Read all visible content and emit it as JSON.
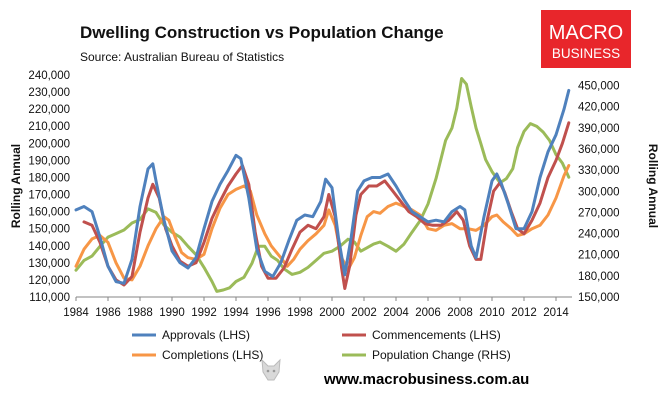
{
  "chart_data": {
    "type": "line",
    "title": "Dwelling Construction vs Population Change",
    "subtitle": "Source: Australian Bureau of Statistics",
    "ylabel": "Rolling Annual",
    "y2label": "Rolling Annual",
    "ylim": [
      110000,
      240000
    ],
    "y2lim": [
      150000,
      465000
    ],
    "xlim": [
      1984,
      2015
    ],
    "x_ticks": [
      1984,
      1986,
      1988,
      1990,
      1992,
      1994,
      1996,
      1998,
      2000,
      2002,
      2004,
      2006,
      2008,
      2010,
      2012,
      2014
    ],
    "y_ticks": [
      110000,
      120000,
      130000,
      140000,
      150000,
      160000,
      170000,
      180000,
      190000,
      200000,
      210000,
      220000,
      230000,
      240000
    ],
    "y2_ticks": [
      150000,
      180000,
      210000,
      240000,
      270000,
      300000,
      330000,
      360000,
      390000,
      420000,
      450000
    ],
    "y_tick_labels": [
      "110,000",
      "120,000",
      "130,000",
      "140,000",
      "150,000",
      "160,000",
      "170,000",
      "180,000",
      "190,000",
      "200,000",
      "210,000",
      "220,000",
      "230,000",
      "240,000"
    ],
    "y2_tick_labels": [
      "150,000",
      "180,000",
      "210,000",
      "240,000",
      "270,000",
      "300,000",
      "330,000",
      "360,000",
      "390,000",
      "420,000",
      "450,000"
    ],
    "grid": false,
    "legend_position": "bottom",
    "series": [
      {
        "name": "Approvals (LHS)",
        "axis": "left",
        "color": "#4f81bd",
        "points": [
          [
            1984,
            161000
          ],
          [
            1984.5,
            163000
          ],
          [
            1985,
            160000
          ],
          [
            1985.5,
            145000
          ],
          [
            1986,
            128000
          ],
          [
            1986.5,
            119000
          ],
          [
            1987,
            118000
          ],
          [
            1987.5,
            132000
          ],
          [
            1988,
            163000
          ],
          [
            1988.5,
            185000
          ],
          [
            1988.8,
            188000
          ],
          [
            1989,
            178000
          ],
          [
            1989.5,
            155000
          ],
          [
            1990,
            137000
          ],
          [
            1990.5,
            130000
          ],
          [
            1991,
            127000
          ],
          [
            1991.5,
            133000
          ],
          [
            1992,
            150000
          ],
          [
            1992.5,
            166000
          ],
          [
            1993,
            176000
          ],
          [
            1993.5,
            184000
          ],
          [
            1994,
            193000
          ],
          [
            1994.3,
            191000
          ],
          [
            1994.8,
            168000
          ],
          [
            1995.3,
            138000
          ],
          [
            1995.8,
            125000
          ],
          [
            1996.3,
            122000
          ],
          [
            1996.8,
            130000
          ],
          [
            1997.3,
            143000
          ],
          [
            1997.8,
            155000
          ],
          [
            1998.3,
            158000
          ],
          [
            1998.8,
            157000
          ],
          [
            1999.3,
            166000
          ],
          [
            1999.6,
            179000
          ],
          [
            2000,
            174000
          ],
          [
            2000.4,
            145000
          ],
          [
            2000.8,
            123000
          ],
          [
            2001.2,
            145000
          ],
          [
            2001.6,
            172000
          ],
          [
            2002,
            178000
          ],
          [
            2002.5,
            180000
          ],
          [
            2003,
            180000
          ],
          [
            2003.5,
            182000
          ],
          [
            2004,
            175000
          ],
          [
            2004.5,
            167000
          ],
          [
            2005,
            160000
          ],
          [
            2005.5,
            157000
          ],
          [
            2006,
            154000
          ],
          [
            2006.5,
            155000
          ],
          [
            2007,
            154000
          ],
          [
            2007.5,
            160000
          ],
          [
            2008,
            163000
          ],
          [
            2008.3,
            161000
          ],
          [
            2008.7,
            140000
          ],
          [
            2009,
            133000
          ],
          [
            2009.5,
            157000
          ],
          [
            2010,
            178000
          ],
          [
            2010.3,
            182000
          ],
          [
            2010.6,
            176000
          ],
          [
            2011,
            165000
          ],
          [
            2011.5,
            150000
          ],
          [
            2012,
            150000
          ],
          [
            2012.5,
            160000
          ],
          [
            2013,
            180000
          ],
          [
            2013.5,
            195000
          ],
          [
            2014,
            205000
          ],
          [
            2014.5,
            220000
          ],
          [
            2014.8,
            231000
          ]
        ]
      },
      {
        "name": "Commencements (LHS)",
        "axis": "left",
        "color": "#c0504d",
        "points": [
          [
            1984.5,
            154000
          ],
          [
            1985,
            152000
          ],
          [
            1985.5,
            142000
          ],
          [
            1986,
            128000
          ],
          [
            1986.5,
            120000
          ],
          [
            1987,
            117000
          ],
          [
            1987.5,
            122000
          ],
          [
            1988,
            148000
          ],
          [
            1988.5,
            168000
          ],
          [
            1988.8,
            176000
          ],
          [
            1989.2,
            168000
          ],
          [
            1989.6,
            150000
          ],
          [
            1990,
            140000
          ],
          [
            1990.5,
            131000
          ],
          [
            1991,
            128000
          ],
          [
            1991.5,
            130000
          ],
          [
            1992,
            142000
          ],
          [
            1992.5,
            156000
          ],
          [
            1993,
            166000
          ],
          [
            1993.5,
            175000
          ],
          [
            1994,
            182000
          ],
          [
            1994.4,
            187000
          ],
          [
            1994.8,
            176000
          ],
          [
            1995.2,
            148000
          ],
          [
            1995.6,
            128000
          ],
          [
            1996,
            121000
          ],
          [
            1996.5,
            121000
          ],
          [
            1997,
            127000
          ],
          [
            1997.5,
            138000
          ],
          [
            1998,
            148000
          ],
          [
            1998.5,
            152000
          ],
          [
            1999,
            150000
          ],
          [
            1999.5,
            157000
          ],
          [
            1999.8,
            170000
          ],
          [
            2000.2,
            157000
          ],
          [
            2000.6,
            127000
          ],
          [
            2000.8,
            115000
          ],
          [
            2001.1,
            128000
          ],
          [
            2001.5,
            158000
          ],
          [
            2001.8,
            170000
          ],
          [
            2002.3,
            175000
          ],
          [
            2002.8,
            175000
          ],
          [
            2003.3,
            178000
          ],
          [
            2003.8,
            172000
          ],
          [
            2004.3,
            166000
          ],
          [
            2004.8,
            160000
          ],
          [
            2005.3,
            157000
          ],
          [
            2005.8,
            153000
          ],
          [
            2006.3,
            152000
          ],
          [
            2006.8,
            152000
          ],
          [
            2007.3,
            155000
          ],
          [
            2007.8,
            160000
          ],
          [
            2008.2,
            155000
          ],
          [
            2008.6,
            140000
          ],
          [
            2009,
            132000
          ],
          [
            2009.3,
            132000
          ],
          [
            2009.7,
            155000
          ],
          [
            2010.1,
            172000
          ],
          [
            2010.5,
            177000
          ],
          [
            2010.8,
            171000
          ],
          [
            2011.2,
            160000
          ],
          [
            2011.6,
            150000
          ],
          [
            2012,
            147000
          ],
          [
            2012.5,
            155000
          ],
          [
            2013,
            165000
          ],
          [
            2013.5,
            180000
          ],
          [
            2014,
            190000
          ],
          [
            2014.4,
            200000
          ],
          [
            2014.8,
            212000
          ]
        ]
      },
      {
        "name": "Completions (LHS)",
        "axis": "left",
        "color": "#f79646",
        "points": [
          [
            1984,
            128000
          ],
          [
            1984.5,
            138000
          ],
          [
            1985,
            144000
          ],
          [
            1985.5,
            146000
          ],
          [
            1986,
            142000
          ],
          [
            1986.5,
            130000
          ],
          [
            1987,
            121000
          ],
          [
            1987.5,
            120000
          ],
          [
            1988,
            128000
          ],
          [
            1988.5,
            140000
          ],
          [
            1989,
            150000
          ],
          [
            1989.5,
            157000
          ],
          [
            1989.8,
            155000
          ],
          [
            1990.2,
            145000
          ],
          [
            1990.6,
            136000
          ],
          [
            1991,
            133000
          ],
          [
            1991.5,
            132000
          ],
          [
            1992,
            135000
          ],
          [
            1992.5,
            150000
          ],
          [
            1993,
            162000
          ],
          [
            1993.5,
            170000
          ],
          [
            1994,
            173000
          ],
          [
            1994.5,
            175000
          ],
          [
            1994.9,
            172000
          ],
          [
            1995.3,
            158000
          ],
          [
            1995.8,
            147000
          ],
          [
            1996.2,
            140000
          ],
          [
            1996.8,
            133000
          ],
          [
            1997.2,
            128000
          ],
          [
            1997.6,
            132000
          ],
          [
            1998,
            138000
          ],
          [
            1998.5,
            143000
          ],
          [
            1999,
            147000
          ],
          [
            1999.5,
            152000
          ],
          [
            1999.8,
            161000
          ],
          [
            2000.2,
            152000
          ],
          [
            2000.6,
            133000
          ],
          [
            2001,
            126000
          ],
          [
            2001.4,
            133000
          ],
          [
            2001.8,
            146000
          ],
          [
            2002.2,
            157000
          ],
          [
            2002.6,
            160000
          ],
          [
            2003,
            159000
          ],
          [
            2003.5,
            163000
          ],
          [
            2004,
            165000
          ],
          [
            2004.5,
            163000
          ],
          [
            2005,
            161000
          ],
          [
            2005.5,
            158000
          ],
          [
            2006,
            150000
          ],
          [
            2006.5,
            149000
          ],
          [
            2007,
            152000
          ],
          [
            2007.5,
            153000
          ],
          [
            2008,
            150000
          ],
          [
            2008.5,
            150000
          ],
          [
            2009,
            149000
          ],
          [
            2009.5,
            152000
          ],
          [
            2010,
            157000
          ],
          [
            2010.3,
            158000
          ],
          [
            2010.7,
            154000
          ],
          [
            2011.2,
            150000
          ],
          [
            2011.6,
            146000
          ],
          [
            2012,
            147000
          ],
          [
            2012.5,
            150000
          ],
          [
            2013,
            152000
          ],
          [
            2013.5,
            158000
          ],
          [
            2014,
            168000
          ],
          [
            2014.5,
            181000
          ],
          [
            2014.8,
            187000
          ]
        ]
      },
      {
        "name": "Population Change (RHS)",
        "axis": "right",
        "color": "#9bbb59",
        "points": [
          [
            1984,
            188000
          ],
          [
            1984.5,
            202000
          ],
          [
            1985,
            208000
          ],
          [
            1985.5,
            222000
          ],
          [
            1986,
            235000
          ],
          [
            1986.5,
            240000
          ],
          [
            1987,
            245000
          ],
          [
            1987.5,
            255000
          ],
          [
            1988,
            260000
          ],
          [
            1988.5,
            275000
          ],
          [
            1989,
            270000
          ],
          [
            1989.5,
            252000
          ],
          [
            1990,
            242000
          ],
          [
            1990.5,
            235000
          ],
          [
            1991,
            222000
          ],
          [
            1991.5,
            210000
          ],
          [
            1992,
            192000
          ],
          [
            1992.5,
            172000
          ],
          [
            1992.8,
            158000
          ],
          [
            1993.2,
            160000
          ],
          [
            1993.6,
            163000
          ],
          [
            1994,
            172000
          ],
          [
            1994.5,
            178000
          ],
          [
            1995,
            198000
          ],
          [
            1995.4,
            222000
          ],
          [
            1995.8,
            222000
          ],
          [
            1996.2,
            208000
          ],
          [
            1996.6,
            202000
          ],
          [
            1997,
            190000
          ],
          [
            1997.5,
            182000
          ],
          [
            1998,
            185000
          ],
          [
            1998.5,
            192000
          ],
          [
            1999,
            202000
          ],
          [
            1999.5,
            212000
          ],
          [
            2000,
            215000
          ],
          [
            2000.5,
            222000
          ],
          [
            2001,
            232000
          ],
          [
            2001.4,
            228000
          ],
          [
            2001.8,
            215000
          ],
          [
            2002.2,
            220000
          ],
          [
            2002.6,
            225000
          ],
          [
            2003,
            228000
          ],
          [
            2003.5,
            222000
          ],
          [
            2004,
            215000
          ],
          [
            2004.5,
            225000
          ],
          [
            2005,
            242000
          ],
          [
            2005.5,
            258000
          ],
          [
            2006,
            282000
          ],
          [
            2006.5,
            318000
          ],
          [
            2006.8,
            345000
          ],
          [
            2007.1,
            372000
          ],
          [
            2007.5,
            390000
          ],
          [
            2007.8,
            418000
          ],
          [
            2008.1,
            460000
          ],
          [
            2008.4,
            452000
          ],
          [
            2008.7,
            420000
          ],
          [
            2009,
            390000
          ],
          [
            2009.3,
            368000
          ],
          [
            2009.6,
            345000
          ],
          [
            2010,
            328000
          ],
          [
            2010.5,
            312000
          ],
          [
            2010.9,
            318000
          ],
          [
            2011.3,
            332000
          ],
          [
            2011.6,
            362000
          ],
          [
            2012,
            385000
          ],
          [
            2012.4,
            396000
          ],
          [
            2012.8,
            392000
          ],
          [
            2013.2,
            384000
          ],
          [
            2013.6,
            372000
          ],
          [
            2014,
            352000
          ],
          [
            2014.4,
            340000
          ],
          [
            2014.8,
            320000
          ]
        ]
      }
    ]
  },
  "logo": {
    "line1": "MACRO",
    "line2": "BUSINESS",
    "color": "#e8262b"
  },
  "footer": {
    "url": "www.macrobusiness.com.au",
    "mascot_icon": "wolf-icon"
  }
}
